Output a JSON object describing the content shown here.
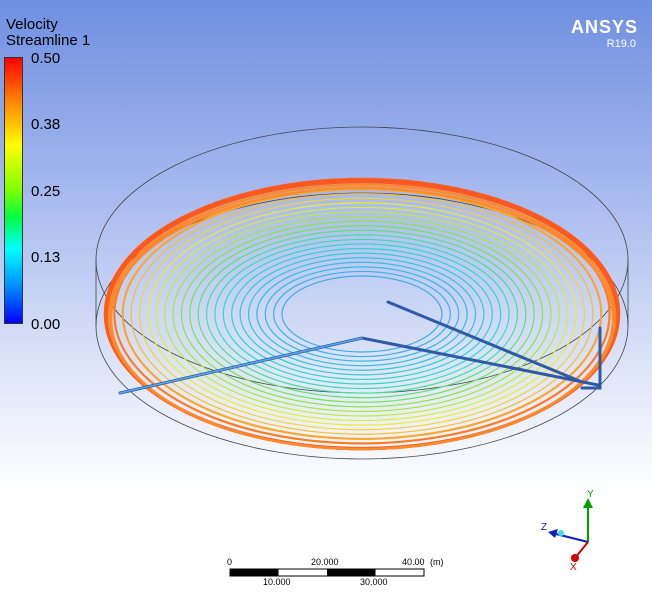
{
  "legend": {
    "title": "Velocity",
    "subtitle": "Streamline 1",
    "ticks": [
      "0.50",
      "0.38",
      "0.25",
      "0.13",
      "0.00"
    ]
  },
  "brand": {
    "name": "ANSYS",
    "version": "R19.0"
  },
  "scale_bar": {
    "top_labels": [
      "0",
      "20.000",
      "40.00"
    ],
    "bottom_labels": [
      "10.000",
      "30.000"
    ],
    "unit": "(m)"
  },
  "axes": {
    "x": "X",
    "y": "Y",
    "z": "Z"
  },
  "colors": {
    "streamline_outer": "#ff5a1e",
    "streamline_inner": "#3aaaf0",
    "pipe": "#2e5aa8"
  }
}
